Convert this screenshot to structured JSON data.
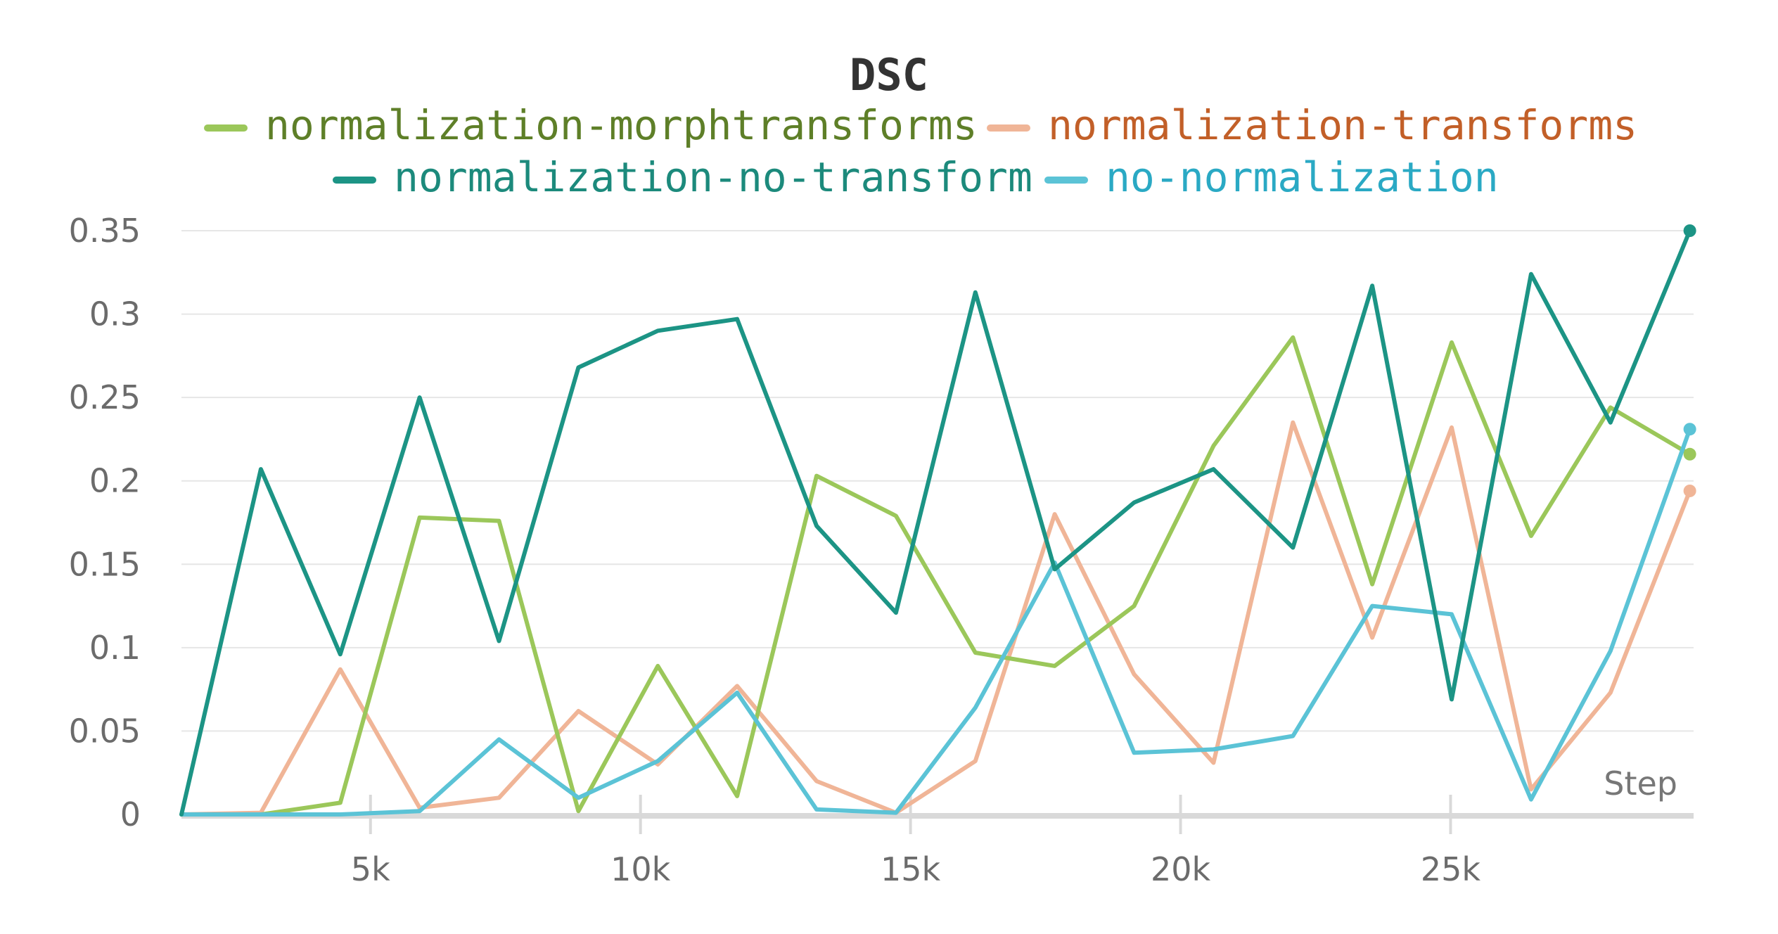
{
  "chart_data": {
    "type": "line",
    "title": "DSC",
    "xlabel": "Step",
    "ylabel": "",
    "xlim": [
      1500,
      29500
    ],
    "ylim": [
      0,
      0.35
    ],
    "grid": true,
    "legend_position": "top",
    "x_ticks": [
      5000,
      10000,
      15000,
      20000,
      25000
    ],
    "x_tick_labels": [
      "5k",
      "10k",
      "15k",
      "20k",
      "25k"
    ],
    "y_ticks": [
      0,
      0.05,
      0.1,
      0.15,
      0.2,
      0.25,
      0.3,
      0.35
    ],
    "y_tick_labels": [
      "0",
      "0.05",
      "0.1",
      "0.15",
      "0.2",
      "0.25",
      "0.3",
      "0.35"
    ],
    "x": [
      1500,
      2970,
      4440,
      5910,
      7380,
      8850,
      10320,
      11790,
      13260,
      14730,
      16200,
      17670,
      19140,
      20610,
      22080,
      23550,
      25020,
      26490,
      27960,
      29430
    ],
    "series": [
      {
        "name": "normalization-morphtransforms",
        "color": "#9bc75a",
        "label_color": "#5e7f28",
        "values": [
          0,
          0,
          0.007,
          0.178,
          0.176,
          0.002,
          0.089,
          0.011,
          0.203,
          0.179,
          0.097,
          0.089,
          0.125,
          0.221,
          0.286,
          0.138,
          0.283,
          0.167,
          0.244,
          0.216
        ]
      },
      {
        "name": "normalization-transforms",
        "color": "#f0b597",
        "label_color": "#c25f28",
        "values": [
          0,
          0.001,
          0.087,
          0.004,
          0.01,
          0.062,
          0.03,
          0.077,
          0.02,
          0.001,
          0.032,
          0.18,
          0.084,
          0.031,
          0.235,
          0.106,
          0.232,
          0.015,
          0.073,
          0.194
        ]
      },
      {
        "name": "normalization-no-transform",
        "color": "#1c9485",
        "label_color": "#1c8a7c",
        "values": [
          0,
          0.207,
          0.096,
          0.25,
          0.104,
          0.268,
          0.29,
          0.297,
          0.173,
          0.121,
          0.313,
          0.147,
          0.187,
          0.207,
          0.16,
          0.317,
          0.069,
          0.324,
          0.235,
          0.35
        ]
      },
      {
        "name": "no-normalization",
        "color": "#5bc3d6",
        "label_color": "#2aa9c4",
        "values": [
          0,
          0,
          0,
          0.002,
          0.045,
          0.01,
          0.032,
          0.073,
          0.003,
          0.001,
          0.064,
          0.151,
          0.037,
          0.039,
          0.047,
          0.125,
          0.12,
          0.009,
          0.098,
          0.231
        ]
      }
    ]
  }
}
